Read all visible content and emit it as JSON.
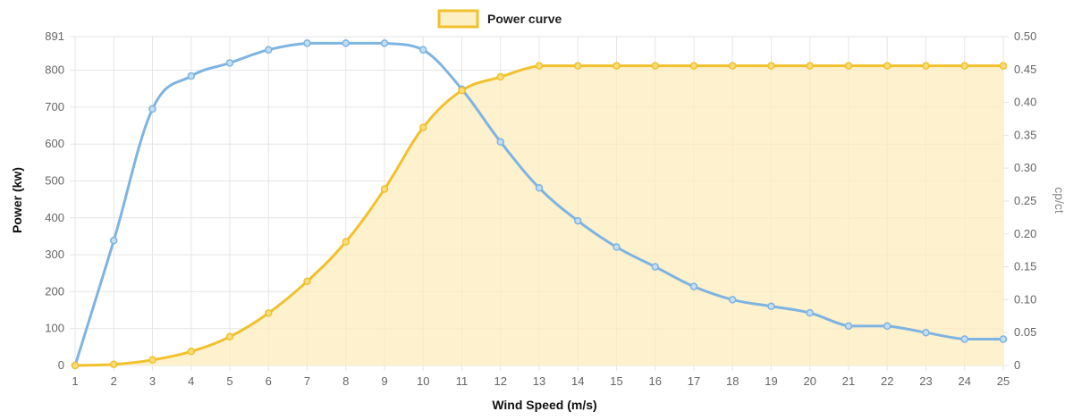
{
  "chart_data": {
    "type": "line",
    "legend": {
      "label": "Power curve",
      "position": "top-center"
    },
    "x": [
      1,
      2,
      3,
      4,
      5,
      6,
      7,
      8,
      9,
      10,
      11,
      12,
      13,
      14,
      15,
      16,
      17,
      18,
      19,
      20,
      21,
      22,
      23,
      24,
      25
    ],
    "x_ticks": [
      "1",
      "2",
      "3",
      "4",
      "5",
      "6",
      "7",
      "8",
      "9",
      "10",
      "11",
      "12",
      "13",
      "14",
      "15",
      "16",
      "17",
      "18",
      "19",
      "20",
      "21",
      "22",
      "23",
      "24",
      "25"
    ],
    "xlabel": "Wind Speed (m/s)",
    "ylabel": "Power (kw)",
    "y2label": "cp/ct",
    "ylim": [
      0,
      891
    ],
    "y2lim": [
      0,
      0.5
    ],
    "y_ticks": [
      "0",
      "100",
      "200",
      "300",
      "400",
      "500",
      "600",
      "700",
      "800",
      "891"
    ],
    "y2_ticks": [
      "0",
      "0.05",
      "0.10",
      "0.15",
      "0.20",
      "0.25",
      "0.30",
      "0.35",
      "0.40",
      "0.45",
      "0.50"
    ],
    "grid": true,
    "series": [
      {
        "name": "Power curve",
        "axis": "left",
        "fill": true,
        "values": [
          0,
          3,
          15,
          38,
          78,
          142,
          228,
          335,
          478,
          645,
          745,
          782,
          812,
          812,
          812,
          812,
          812,
          812,
          812,
          812,
          812,
          812,
          812,
          812,
          812
        ]
      },
      {
        "axis": "right",
        "fill": false,
        "values": [
          0,
          0.19,
          0.39,
          0.44,
          0.46,
          0.48,
          0.49,
          0.49,
          0.49,
          0.48,
          0.42,
          0.34,
          0.27,
          0.22,
          0.18,
          0.15,
          0.12,
          0.1,
          0.09,
          0.08,
          0.06,
          0.06,
          0.05,
          0.04,
          0.04
        ]
      }
    ]
  },
  "colors": {
    "power_line": "#f2c12e",
    "power_fill": "rgba(253,236,190,0.75)",
    "power_point_fill": "#f7dc7a",
    "cp_line": "#7eb4e2",
    "cp_point_fill": "#c4ddf2",
    "grid": "#e6e6e6",
    "tick_text": "#666666"
  }
}
